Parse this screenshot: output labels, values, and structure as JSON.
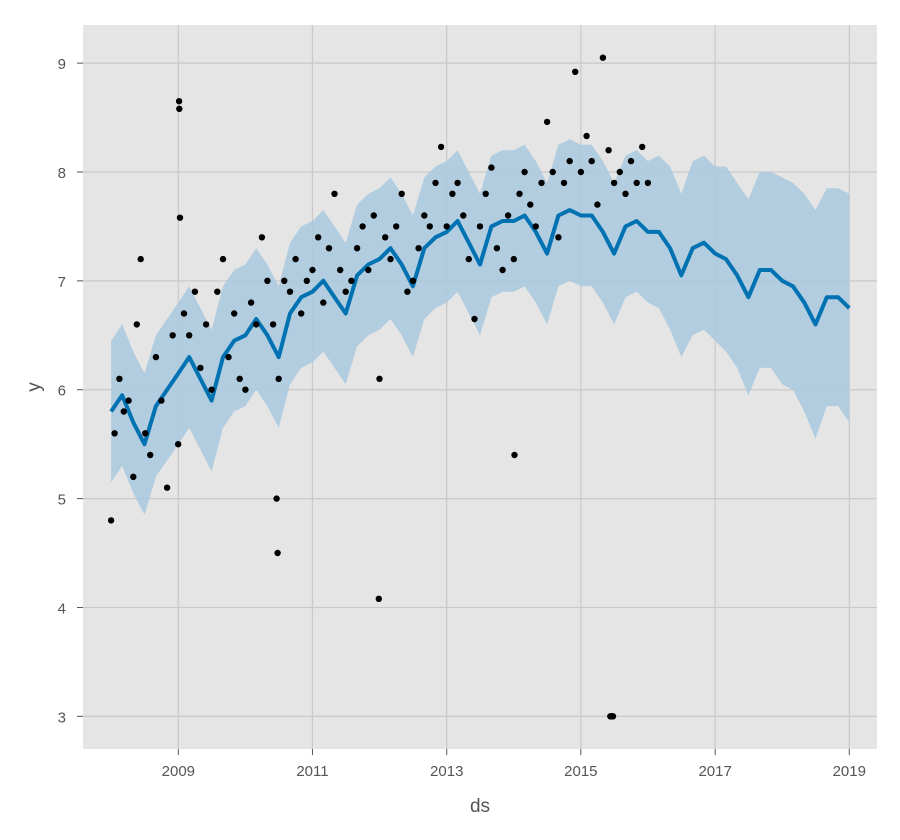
{
  "chart_data": {
    "type": "line",
    "title": "",
    "xlabel": "ds",
    "ylabel": "y",
    "x_type": "date",
    "xlim": [
      "2007-08-01",
      "2019-06-01"
    ],
    "ylim": [
      2.7,
      9.35
    ],
    "grid": true,
    "legend": "none",
    "x_ticks": [
      {
        "value": "2009-01-01",
        "label": "2009"
      },
      {
        "value": "2011-01-01",
        "label": "2011"
      },
      {
        "value": "2013-01-01",
        "label": "2013"
      },
      {
        "value": "2015-01-01",
        "label": "2015"
      },
      {
        "value": "2017-01-01",
        "label": "2017"
      },
      {
        "value": "2019-01-01",
        "label": "2019"
      }
    ],
    "y_ticks": [
      3,
      4,
      5,
      6,
      7,
      8,
      9
    ],
    "colors": {
      "background": "#e5e5e5",
      "grid": "#c9c9c9",
      "forecast_line": "#0072b2",
      "interval_fill": "#a9c9df",
      "observations": "#000000"
    },
    "series": [
      {
        "kind": "forecast",
        "x": [
          "2008-01-01",
          "2008-03-01",
          "2008-05-01",
          "2008-07-01",
          "2008-09-01",
          "2008-11-01",
          "2009-01-01",
          "2009-03-01",
          "2009-05-01",
          "2009-07-01",
          "2009-09-01",
          "2009-11-01",
          "2010-01-01",
          "2010-03-01",
          "2010-05-01",
          "2010-07-01",
          "2010-09-01",
          "2010-11-01",
          "2011-01-01",
          "2011-03-01",
          "2011-05-01",
          "2011-07-01",
          "2011-09-01",
          "2011-11-01",
          "2012-01-01",
          "2012-03-01",
          "2012-05-01",
          "2012-07-01",
          "2012-09-01",
          "2012-11-01",
          "2013-01-01",
          "2013-03-01",
          "2013-05-01",
          "2013-07-01",
          "2013-09-01",
          "2013-11-01",
          "2014-01-01",
          "2014-03-01",
          "2014-05-01",
          "2014-07-01",
          "2014-09-01",
          "2014-11-01",
          "2015-01-01",
          "2015-03-01",
          "2015-05-01",
          "2015-07-01",
          "2015-09-01",
          "2015-11-01",
          "2016-01-01",
          "2016-03-01",
          "2016-05-01",
          "2016-07-01",
          "2016-09-01",
          "2016-11-01",
          "2017-01-01",
          "2017-03-01",
          "2017-05-01",
          "2017-07-01",
          "2017-09-01",
          "2017-11-01",
          "2018-01-01",
          "2018-03-01",
          "2018-05-01",
          "2018-07-01",
          "2018-09-01",
          "2018-11-01",
          "2019-01-01"
        ],
        "yhat": [
          5.8,
          5.95,
          5.7,
          5.5,
          5.85,
          6.0,
          6.15,
          6.3,
          6.1,
          5.9,
          6.3,
          6.45,
          6.5,
          6.65,
          6.5,
          6.3,
          6.7,
          6.85,
          6.9,
          7.0,
          6.85,
          6.7,
          7.05,
          7.15,
          7.2,
          7.3,
          7.15,
          6.95,
          7.3,
          7.4,
          7.45,
          7.55,
          7.35,
          7.15,
          7.5,
          7.55,
          7.55,
          7.6,
          7.45,
          7.25,
          7.6,
          7.65,
          7.6,
          7.6,
          7.45,
          7.25,
          7.5,
          7.55,
          7.45,
          7.45,
          7.3,
          7.05,
          7.3,
          7.35,
          7.25,
          7.2,
          7.05,
          6.85,
          7.1,
          7.1,
          7.0,
          6.95,
          6.8,
          6.6,
          6.85,
          6.85,
          6.75
        ],
        "yhat_lower": [
          5.15,
          5.3,
          5.05,
          4.85,
          5.2,
          5.35,
          5.5,
          5.65,
          5.45,
          5.25,
          5.65,
          5.8,
          5.85,
          6.0,
          5.85,
          5.65,
          6.05,
          6.2,
          6.25,
          6.35,
          6.2,
          6.05,
          6.4,
          6.5,
          6.55,
          6.65,
          6.5,
          6.3,
          6.65,
          6.75,
          6.8,
          6.9,
          6.7,
          6.5,
          6.85,
          6.9,
          6.9,
          6.95,
          6.8,
          6.6,
          6.95,
          7.0,
          6.95,
          6.95,
          6.8,
          6.6,
          6.85,
          6.9,
          6.8,
          6.75,
          6.55,
          6.3,
          6.5,
          6.55,
          6.45,
          6.35,
          6.2,
          5.95,
          6.2,
          6.2,
          6.05,
          6.0,
          5.8,
          5.55,
          5.85,
          5.85,
          5.7
        ],
        "yhat_upper": [
          6.45,
          6.6,
          6.35,
          6.15,
          6.5,
          6.65,
          6.8,
          6.95,
          6.75,
          6.55,
          6.95,
          7.1,
          7.15,
          7.3,
          7.15,
          6.95,
          7.35,
          7.5,
          7.55,
          7.65,
          7.5,
          7.35,
          7.7,
          7.8,
          7.85,
          7.95,
          7.8,
          7.6,
          7.95,
          8.05,
          8.1,
          8.2,
          8.0,
          7.8,
          8.15,
          8.2,
          8.2,
          8.25,
          8.1,
          7.9,
          8.25,
          8.3,
          8.25,
          8.25,
          8.1,
          7.9,
          8.15,
          8.2,
          8.1,
          8.15,
          8.05,
          7.8,
          8.1,
          8.15,
          8.05,
          8.05,
          7.9,
          7.75,
          8.0,
          8.0,
          7.95,
          7.9,
          7.8,
          7.65,
          7.85,
          7.85,
          7.8
        ]
      },
      {
        "kind": "observed",
        "x": [
          "2008-01-01",
          "2008-01-20",
          "2008-02-15",
          "2008-03-10",
          "2008-04-05",
          "2008-05-01",
          "2008-05-20",
          "2008-06-10",
          "2008-07-05",
          "2008-08-01",
          "2008-09-01",
          "2008-10-01",
          "2008-11-01",
          "2008-12-01",
          "2008-12-31",
          "2009-01-05",
          "2009-01-06",
          "2009-01-10",
          "2009-02-01",
          "2009-03-01",
          "2009-04-01",
          "2009-05-01",
          "2009-06-01",
          "2009-07-01",
          "2009-08-01",
          "2009-09-01",
          "2009-10-01",
          "2009-11-01",
          "2009-12-01",
          "2010-01-01",
          "2010-02-01",
          "2010-03-01",
          "2010-04-01",
          "2010-05-01",
          "2010-06-01",
          "2010-06-20",
          "2010-06-25",
          "2010-07-01",
          "2010-08-01",
          "2010-09-01",
          "2010-10-01",
          "2010-11-01",
          "2010-12-01",
          "2011-01-01",
          "2011-02-01",
          "2011-03-01",
          "2011-04-01",
          "2011-05-01",
          "2011-06-01",
          "2011-07-01",
          "2011-08-01",
          "2011-09-01",
          "2011-10-01",
          "2011-11-01",
          "2011-12-01",
          "2011-12-28",
          "2012-01-01",
          "2012-02-01",
          "2012-03-01",
          "2012-04-01",
          "2012-05-01",
          "2012-06-01",
          "2012-07-01",
          "2012-08-01",
          "2012-09-01",
          "2012-10-01",
          "2012-11-01",
          "2012-12-01",
          "2013-01-01",
          "2013-02-01",
          "2013-03-01",
          "2013-04-01",
          "2013-05-01",
          "2013-06-01",
          "2013-07-01",
          "2013-08-01",
          "2013-09-01",
          "2013-10-01",
          "2013-11-01",
          "2013-12-01",
          "2014-01-01",
          "2014-01-05",
          "2014-02-01",
          "2014-03-01",
          "2014-04-01",
          "2014-05-01",
          "2014-06-01",
          "2014-07-01",
          "2014-08-01",
          "2014-09-01",
          "2014-10-01",
          "2014-11-01",
          "2014-12-01",
          "2015-01-01",
          "2015-02-01",
          "2015-03-01",
          "2015-04-01",
          "2015-05-01",
          "2015-06-01",
          "2015-06-10",
          "2015-06-15",
          "2015-06-20",
          "2015-06-25",
          "2015-07-01",
          "2015-08-01",
          "2015-09-01",
          "2015-10-01",
          "2015-11-01",
          "2015-12-01",
          "2016-01-01"
        ],
        "y": [
          4.8,
          5.6,
          6.1,
          5.8,
          5.9,
          5.2,
          6.6,
          7.2,
          5.6,
          5.4,
          6.3,
          5.9,
          5.1,
          6.5,
          5.5,
          8.65,
          8.58,
          7.58,
          6.7,
          6.5,
          6.9,
          6.2,
          6.6,
          6.0,
          6.9,
          7.2,
          6.3,
          6.7,
          6.1,
          6.0,
          6.8,
          6.6,
          7.4,
          7.0,
          6.6,
          5.0,
          4.5,
          6.1,
          7.0,
          6.9,
          7.2,
          6.7,
          7.0,
          7.1,
          7.4,
          6.8,
          7.3,
          7.8,
          7.1,
          6.9,
          7.0,
          7.3,
          7.5,
          7.1,
          7.6,
          4.08,
          6.1,
          7.4,
          7.2,
          7.5,
          7.8,
          6.9,
          7.0,
          7.3,
          7.6,
          7.5,
          7.9,
          8.23,
          7.5,
          7.8,
          7.9,
          7.6,
          7.2,
          6.65,
          7.5,
          7.8,
          8.04,
          7.3,
          7.1,
          7.6,
          7.2,
          5.4,
          7.8,
          8.0,
          7.7,
          7.5,
          7.9,
          8.46,
          8.0,
          7.4,
          7.9,
          8.1,
          8.92,
          8.0,
          8.33,
          8.1,
          7.7,
          9.05,
          8.2,
          3.0,
          3.0,
          3.0,
          3.0,
          7.9,
          8.0,
          7.8,
          8.1,
          7.9,
          8.23,
          7.9
        ]
      }
    ]
  }
}
